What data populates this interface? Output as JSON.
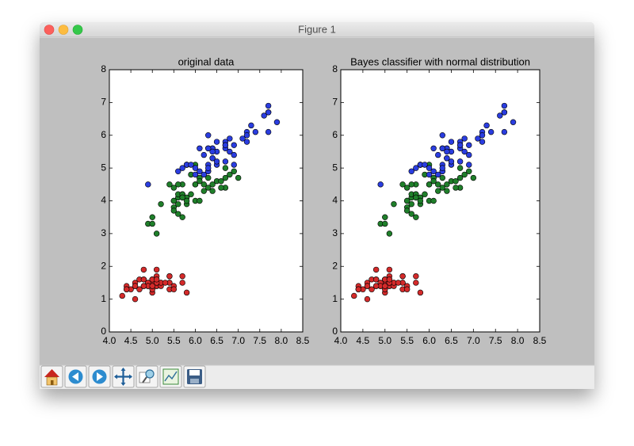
{
  "window_title": "Figure 1",
  "chart_data": [
    {
      "type": "scatter",
      "title": "original data",
      "xlim": [
        4.0,
        8.5
      ],
      "xticks": [
        {
          "value": 4,
          "label": "4.0"
        },
        4.5,
        {
          "value": 5,
          "label": "5.0"
        },
        5.5,
        {
          "value": 6,
          "label": "6.0"
        },
        6.5,
        {
          "value": 7,
          "label": "7.0"
        },
        7.5,
        {
          "value": 8,
          "label": "8.0"
        },
        8.5
      ],
      "ylim": [
        0,
        8
      ],
      "yticks": [
        0,
        1,
        2,
        3,
        4,
        5,
        6,
        7,
        8
      ],
      "series": [
        {
          "color": "#d42a2a",
          "x": [
            5.1,
            4.9,
            4.7,
            4.6,
            5.0,
            5.4,
            4.6,
            5.0,
            4.4,
            4.9,
            5.4,
            4.8,
            4.8,
            4.3,
            5.8,
            5.7,
            5.4,
            5.1,
            5.7,
            5.1,
            5.4,
            5.1,
            4.6,
            5.1,
            4.8,
            5.0,
            5.0,
            5.2,
            5.2,
            4.7,
            4.8,
            5.4,
            5.2,
            5.5,
            4.9,
            5.0,
            5.5,
            4.9,
            4.4,
            5.1,
            5.0,
            4.5,
            4.4,
            5.0,
            5.1,
            4.8,
            5.1,
            4.6,
            5.3,
            5.0
          ],
          "values": [
            1.4,
            1.4,
            1.3,
            1.5,
            1.4,
            1.7,
            1.4,
            1.5,
            1.4,
            1.5,
            1.5,
            1.6,
            1.4,
            1.1,
            1.2,
            1.5,
            1.3,
            1.4,
            1.7,
            1.5,
            1.7,
            1.5,
            1.0,
            1.7,
            1.9,
            1.6,
            1.6,
            1.5,
            1.4,
            1.6,
            1.6,
            1.5,
            1.5,
            1.4,
            1.5,
            1.2,
            1.3,
            1.4,
            1.3,
            1.5,
            1.3,
            1.3,
            1.3,
            1.6,
            1.9,
            1.4,
            1.6,
            1.4,
            1.5,
            1.4
          ]
        },
        {
          "color": "#1f7f2a",
          "x": [
            7.0,
            6.4,
            6.9,
            5.5,
            6.5,
            5.7,
            6.3,
            4.9,
            6.6,
            5.2,
            5.0,
            5.9,
            6.0,
            6.1,
            5.6,
            6.7,
            5.6,
            5.8,
            6.2,
            5.6,
            5.9,
            6.1,
            6.3,
            6.1,
            6.4,
            6.6,
            6.8,
            6.7,
            6.0,
            5.7,
            5.5,
            5.5,
            5.8,
            6.0,
            5.4,
            6.0,
            6.7,
            6.3,
            5.6,
            5.5,
            5.5,
            6.1,
            5.8,
            5.0,
            5.6,
            5.7,
            5.7,
            6.2,
            5.1,
            5.7
          ],
          "values": [
            4.7,
            4.5,
            4.9,
            4.0,
            4.6,
            4.5,
            4.7,
            3.3,
            4.6,
            3.9,
            3.5,
            4.2,
            4.0,
            4.7,
            3.6,
            4.4,
            4.5,
            4.1,
            4.5,
            3.9,
            4.8,
            4.0,
            4.9,
            4.7,
            4.3,
            4.4,
            4.8,
            5.0,
            4.5,
            3.5,
            3.8,
            3.7,
            3.9,
            5.1,
            4.5,
            4.5,
            4.7,
            4.4,
            4.1,
            4.0,
            4.4,
            4.6,
            4.0,
            3.3,
            4.2,
            4.2,
            4.2,
            4.3,
            3.0,
            4.1
          ]
        },
        {
          "color": "#2a3de0",
          "x": [
            6.3,
            5.8,
            7.1,
            6.3,
            6.5,
            7.6,
            4.9,
            7.3,
            6.7,
            7.2,
            6.5,
            6.4,
            6.8,
            5.7,
            5.8,
            6.4,
            6.5,
            7.7,
            7.7,
            6.0,
            6.9,
            5.6,
            7.7,
            6.3,
            6.7,
            7.2,
            6.2,
            6.1,
            6.4,
            7.2,
            7.4,
            7.9,
            6.4,
            6.3,
            6.1,
            7.7,
            6.3,
            6.4,
            6.0,
            6.9,
            6.7,
            6.9,
            5.8,
            6.8,
            6.7,
            6.7,
            6.3,
            6.5,
            6.2,
            5.9
          ],
          "values": [
            6.0,
            5.1,
            5.9,
            5.6,
            5.8,
            6.6,
            4.5,
            6.3,
            5.8,
            6.1,
            5.1,
            5.3,
            5.5,
            5.0,
            5.1,
            5.3,
            5.5,
            6.7,
            6.9,
            5.0,
            5.7,
            4.9,
            6.7,
            4.9,
            5.7,
            6.0,
            4.8,
            4.9,
            5.6,
            5.8,
            6.1,
            6.4,
            5.6,
            5.1,
            5.6,
            6.1,
            5.6,
            5.5,
            4.8,
            5.4,
            5.6,
            5.1,
            5.1,
            5.9,
            5.7,
            5.2,
            5.0,
            5.2,
            5.4,
            5.1
          ]
        }
      ]
    },
    {
      "type": "scatter",
      "title": "Bayes classifier with normal distribution",
      "xlim": [
        4.0,
        8.5
      ],
      "xticks": [
        {
          "value": 4,
          "label": "4.0"
        },
        4.5,
        {
          "value": 5,
          "label": "5.0"
        },
        5.5,
        {
          "value": 6,
          "label": "6.0"
        },
        6.5,
        {
          "value": 7,
          "label": "7.0"
        },
        7.5,
        {
          "value": 8,
          "label": "8.0"
        },
        8.5
      ],
      "ylim": [
        0,
        8
      ],
      "yticks": [
        0,
        1,
        2,
        3,
        4,
        5,
        6,
        7,
        8
      ],
      "series": [
        {
          "color": "#d42a2a",
          "x": [
            5.1,
            4.9,
            4.7,
            4.6,
            5.0,
            5.4,
            4.6,
            5.0,
            4.4,
            4.9,
            5.4,
            4.8,
            4.8,
            4.3,
            5.8,
            5.7,
            5.4,
            5.1,
            5.7,
            5.1,
            5.4,
            5.1,
            4.6,
            5.1,
            4.8,
            5.0,
            5.0,
            5.2,
            5.2,
            4.7,
            4.8,
            5.4,
            5.2,
            5.5,
            4.9,
            5.0,
            5.5,
            4.9,
            4.4,
            5.1,
            5.0,
            4.5,
            4.4,
            5.0,
            5.1,
            4.8,
            5.1,
            4.6,
            5.3,
            5.0
          ],
          "values": [
            1.4,
            1.4,
            1.3,
            1.5,
            1.4,
            1.7,
            1.4,
            1.5,
            1.4,
            1.5,
            1.5,
            1.6,
            1.4,
            1.1,
            1.2,
            1.5,
            1.3,
            1.4,
            1.7,
            1.5,
            1.7,
            1.5,
            1.0,
            1.7,
            1.9,
            1.6,
            1.6,
            1.5,
            1.4,
            1.6,
            1.6,
            1.5,
            1.5,
            1.4,
            1.5,
            1.2,
            1.3,
            1.4,
            1.3,
            1.5,
            1.3,
            1.3,
            1.3,
            1.6,
            1.9,
            1.4,
            1.6,
            1.4,
            1.5,
            1.4
          ]
        },
        {
          "color": "#1f7f2a",
          "x": [
            7.0,
            6.4,
            6.9,
            5.5,
            6.5,
            5.7,
            6.3,
            4.9,
            6.6,
            5.2,
            5.0,
            5.9,
            6.0,
            6.1,
            5.6,
            6.7,
            5.6,
            5.8,
            6.2,
            5.6,
            5.9,
            6.1,
            6.3,
            6.1,
            6.4,
            6.6,
            6.8,
            6.7,
            6.0,
            5.7,
            5.5,
            5.5,
            5.8,
            6.0,
            5.4,
            6.0,
            6.7,
            6.3,
            5.6,
            5.5,
            5.5,
            6.1,
            5.8,
            5.0,
            5.6,
            5.7,
            5.7,
            6.2,
            5.1,
            5.7
          ],
          "values": [
            4.7,
            4.5,
            4.9,
            4.0,
            4.6,
            4.5,
            4.7,
            3.3,
            4.6,
            3.9,
            3.5,
            4.2,
            4.0,
            4.7,
            3.6,
            4.4,
            4.5,
            4.1,
            4.5,
            3.9,
            4.8,
            4.0,
            4.9,
            4.7,
            4.3,
            4.4,
            4.8,
            5.0,
            4.5,
            3.5,
            3.8,
            3.7,
            3.9,
            5.1,
            4.5,
            4.5,
            4.7,
            4.4,
            4.1,
            4.0,
            4.4,
            4.6,
            4.0,
            3.3,
            4.2,
            4.2,
            4.2,
            4.3,
            3.0,
            4.1
          ]
        },
        {
          "color": "#2a3de0",
          "x": [
            6.3,
            5.8,
            7.1,
            6.3,
            6.5,
            7.6,
            4.9,
            7.3,
            6.7,
            7.2,
            6.5,
            6.4,
            6.8,
            5.7,
            5.8,
            6.4,
            6.5,
            7.7,
            7.7,
            6.0,
            6.9,
            5.6,
            7.7,
            6.3,
            6.7,
            7.2,
            6.2,
            6.1,
            6.4,
            7.2,
            7.4,
            7.9,
            6.4,
            6.3,
            6.1,
            7.7,
            6.3,
            6.4,
            6.0,
            6.9,
            6.7,
            6.9,
            5.8,
            6.8,
            6.7,
            6.7,
            6.3,
            6.5,
            6.2,
            5.9
          ],
          "values": [
            6.0,
            5.1,
            5.9,
            5.6,
            5.8,
            6.6,
            4.5,
            6.3,
            5.8,
            6.1,
            5.1,
            5.3,
            5.5,
            5.0,
            5.1,
            5.3,
            5.5,
            6.7,
            6.9,
            5.0,
            5.7,
            4.9,
            6.7,
            4.9,
            5.7,
            6.0,
            4.8,
            4.9,
            5.6,
            5.8,
            6.1,
            6.4,
            5.6,
            5.1,
            5.6,
            6.1,
            5.6,
            5.5,
            4.8,
            5.4,
            5.6,
            5.1,
            5.1,
            5.9,
            5.7,
            5.2,
            5.0,
            5.2,
            5.4,
            5.1
          ]
        }
      ]
    }
  ]
}
